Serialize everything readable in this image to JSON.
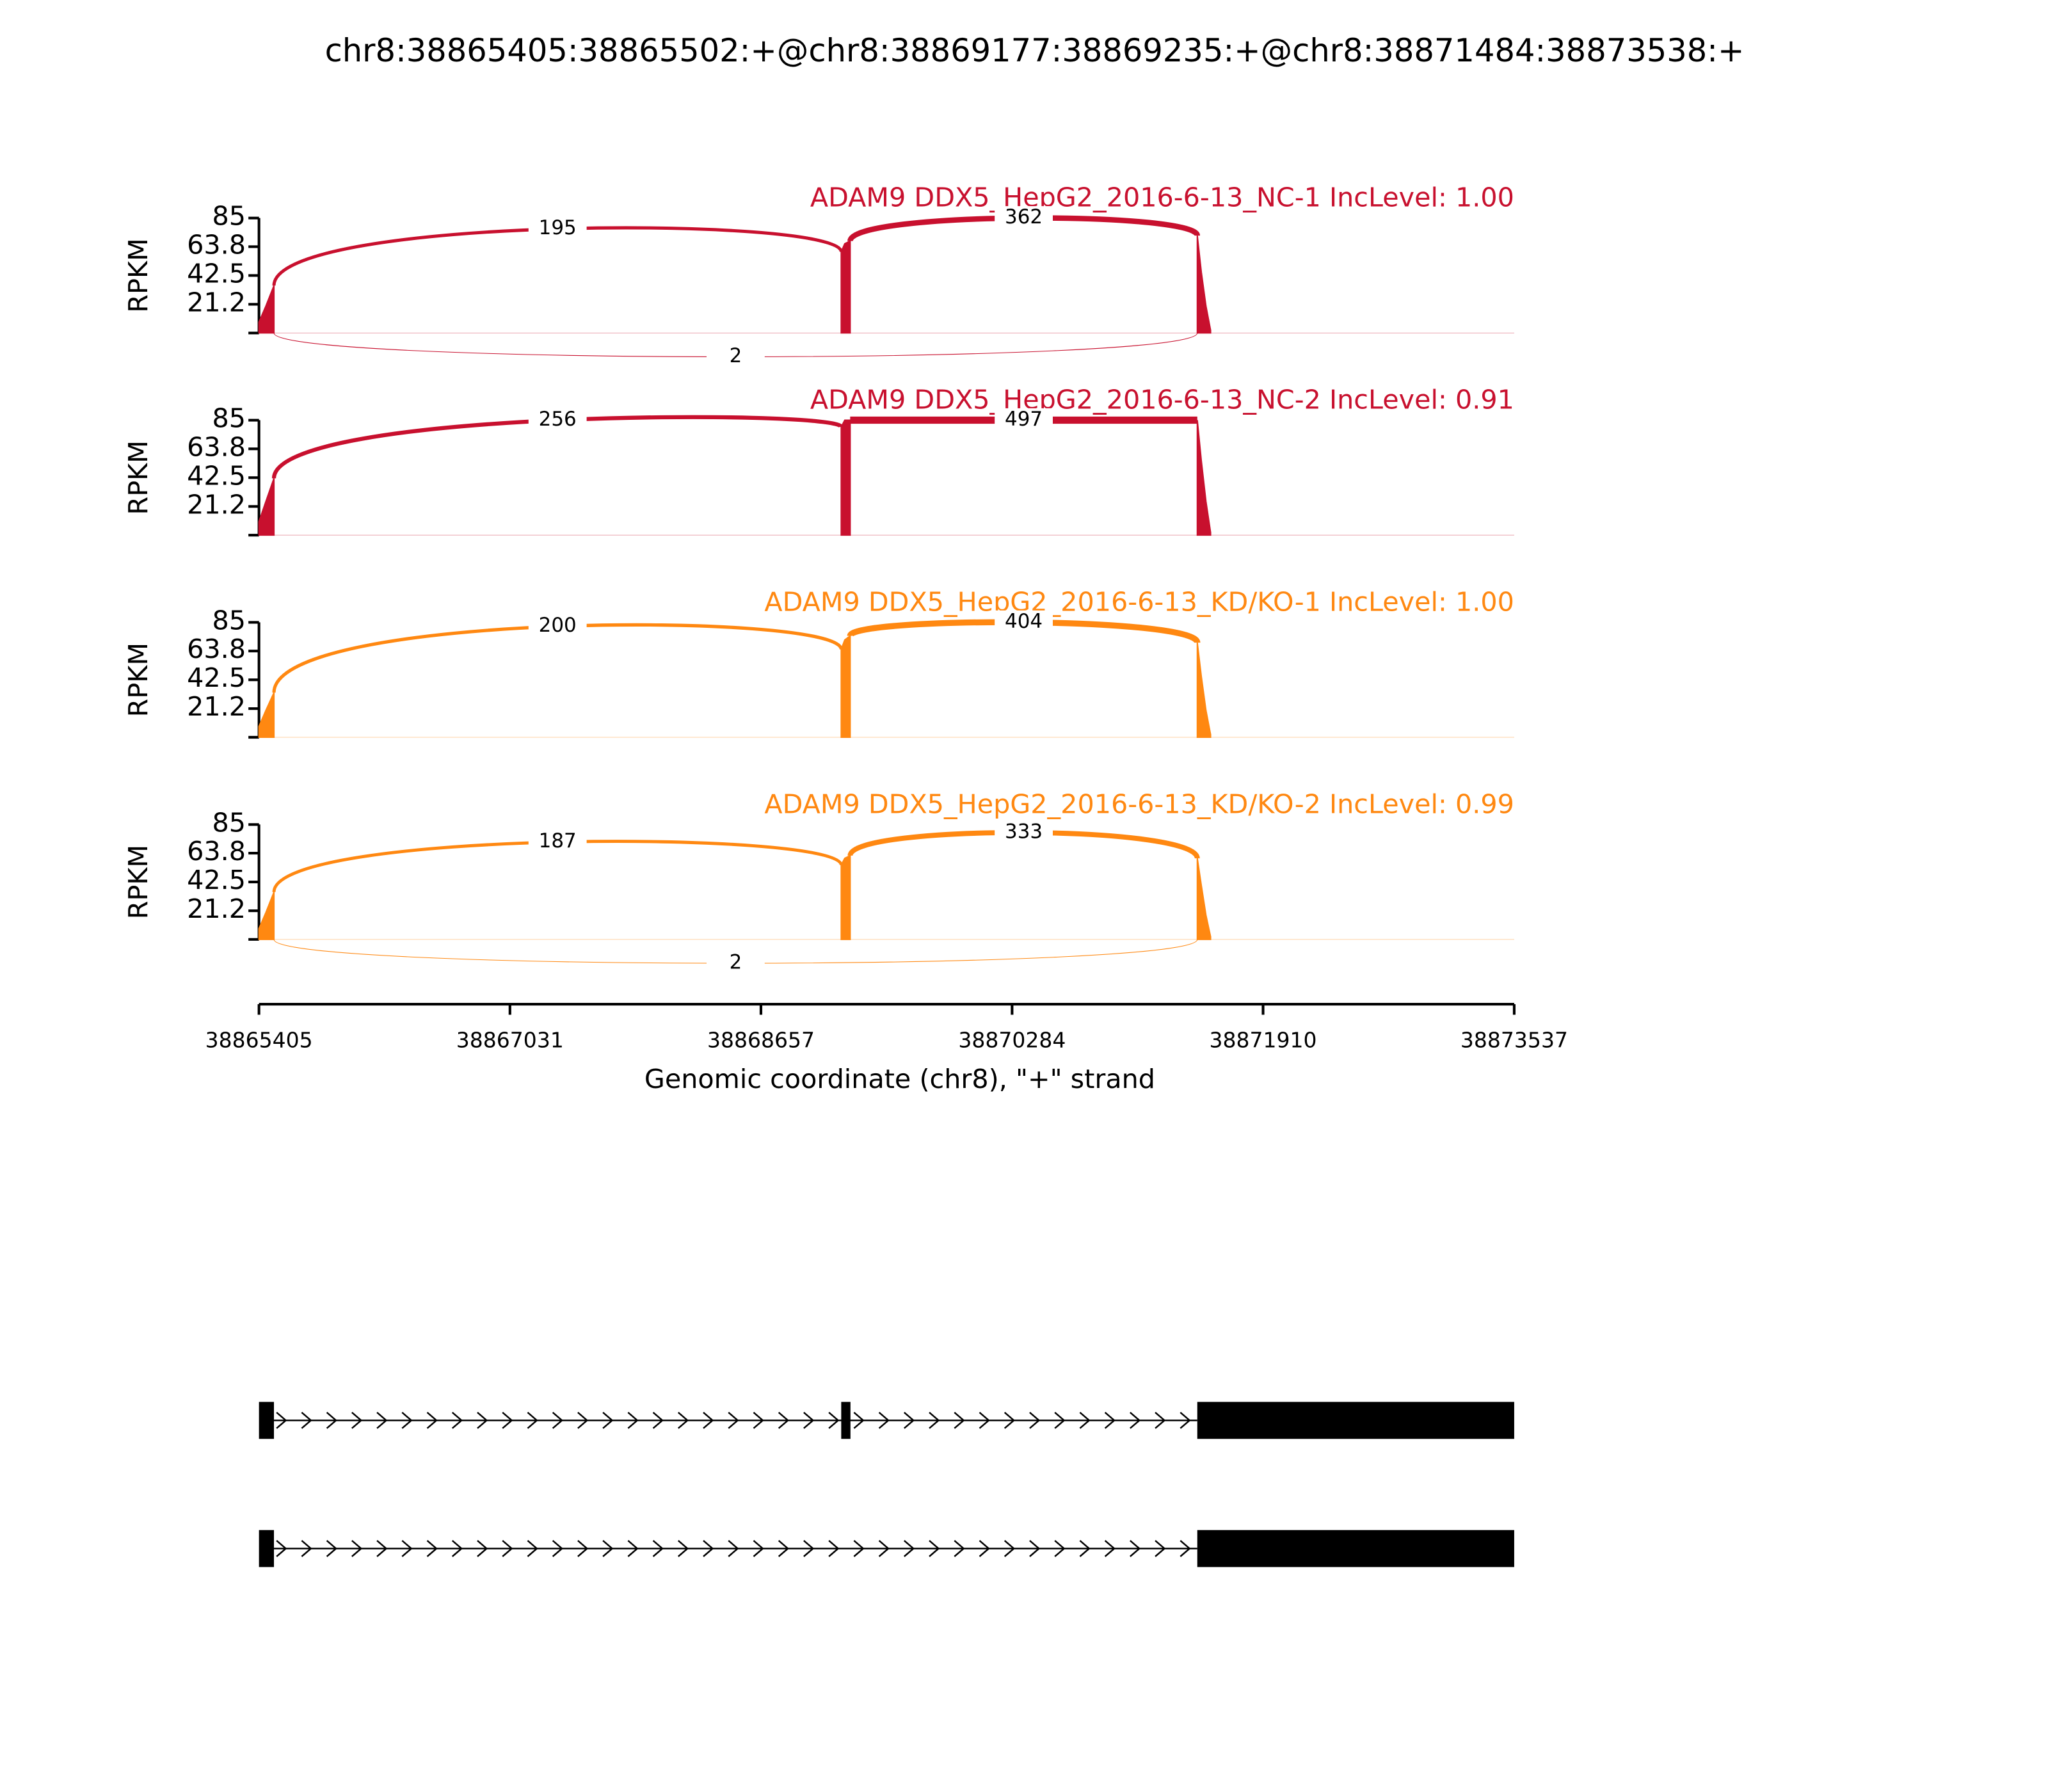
{
  "title": "chr8:38865405:38865502:+@chr8:38869177:38869235:+@chr8:38871484:38873538:+",
  "chart_data": [
    {
      "type": "sashimi",
      "title": "ADAM9 DDX5_HepG2_2016-6-13_NC-1 IncLevel: 1.00",
      "color": "#c8102e",
      "ylabel": "RPKM",
      "ylim": [
        0,
        85
      ],
      "yticks": [
        21.2,
        42.5,
        63.8,
        85
      ],
      "coverage": {
        "x": [
          38865405,
          38865450,
          38865502,
          38867000,
          38869177,
          38869200,
          38869235,
          38870000,
          38871484,
          38871510,
          38871540,
          38871570
        ],
        "values": [
          8,
          20,
          35,
          null,
          60,
          66,
          68,
          null,
          72,
          45,
          20,
          2
        ]
      },
      "junctions": [
        {
          "start": 38865502,
          "end": 38869177,
          "value": 195
        },
        {
          "start": 38869235,
          "end": 38871484,
          "value": 362
        },
        {
          "start": 38865502,
          "end": 38871484,
          "value": 2
        }
      ]
    },
    {
      "type": "sashimi",
      "title": "ADAM9 DDX5_HepG2_2016-6-13_NC-2 IncLevel: 0.91",
      "color": "#c8102e",
      "ylabel": "RPKM",
      "ylim": [
        0,
        85
      ],
      "yticks": [
        21.2,
        42.5,
        63.8,
        85
      ],
      "coverage": {
        "x": [
          38865405,
          38865450,
          38865502,
          38867000,
          38869177,
          38869200,
          38869235,
          38870000,
          38871484,
          38871510,
          38871540,
          38871570
        ],
        "values": [
          10,
          25,
          42,
          null,
          80,
          85,
          85,
          null,
          85,
          55,
          25,
          2
        ]
      },
      "junctions": [
        {
          "start": 38865502,
          "end": 38869177,
          "value": 256
        },
        {
          "start": 38869235,
          "end": 38871484,
          "value": 497
        }
      ]
    },
    {
      "type": "sashimi",
      "title": "ADAM9 DDX5_HepG2_2016-6-13_KD/KO-1 IncLevel: 1.00",
      "color": "#ff8811",
      "ylabel": "RPKM",
      "ylim": [
        0,
        85
      ],
      "yticks": [
        21.2,
        42.5,
        63.8,
        85
      ],
      "coverage": {
        "x": [
          38865405,
          38865450,
          38865502,
          38867000,
          38869177,
          38869200,
          38869235,
          38870000,
          38871484,
          38871510,
          38871540,
          38871570
        ],
        "values": [
          8,
          20,
          33,
          null,
          65,
          72,
          75,
          null,
          70,
          45,
          20,
          2
        ]
      },
      "junctions": [
        {
          "start": 38865502,
          "end": 38869177,
          "value": 200
        },
        {
          "start": 38869235,
          "end": 38871484,
          "value": 404
        }
      ]
    },
    {
      "type": "sashimi",
      "title": "ADAM9 DDX5_HepG2_2016-6-13_KD/KO-2 IncLevel: 0.99",
      "color": "#ff8811",
      "ylabel": "RPKM",
      "ylim": [
        0,
        85
      ],
      "yticks": [
        21.2,
        42.5,
        63.8,
        85
      ],
      "coverage": {
        "x": [
          38865405,
          38865450,
          38865502,
          38867000,
          38869177,
          38869200,
          38869235,
          38870000,
          38871484,
          38871510,
          38871540,
          38871570
        ],
        "values": [
          8,
          20,
          35,
          null,
          55,
          60,
          62,
          null,
          60,
          40,
          18,
          2
        ]
      },
      "junctions": [
        {
          "start": 38865502,
          "end": 38869177,
          "value": 187
        },
        {
          "start": 38869235,
          "end": 38871484,
          "value": 333
        },
        {
          "start": 38865502,
          "end": 38871484,
          "value": 2
        }
      ]
    }
  ],
  "x_axis": {
    "xlabel": "Genomic coordinate (chr8), \"+\" strand",
    "xlim": [
      38865405,
      38873537
    ],
    "xticks": [
      38865405,
      38867031,
      38868657,
      38870284,
      38871910,
      38873537
    ]
  },
  "transcripts": [
    {
      "exons": [
        [
          38865405,
          38865502
        ],
        [
          38869177,
          38869235
        ],
        [
          38871484,
          38873537
        ]
      ]
    },
    {
      "exons": [
        [
          38865405,
          38865502
        ],
        [
          38871484,
          38873537
        ]
      ]
    }
  ]
}
